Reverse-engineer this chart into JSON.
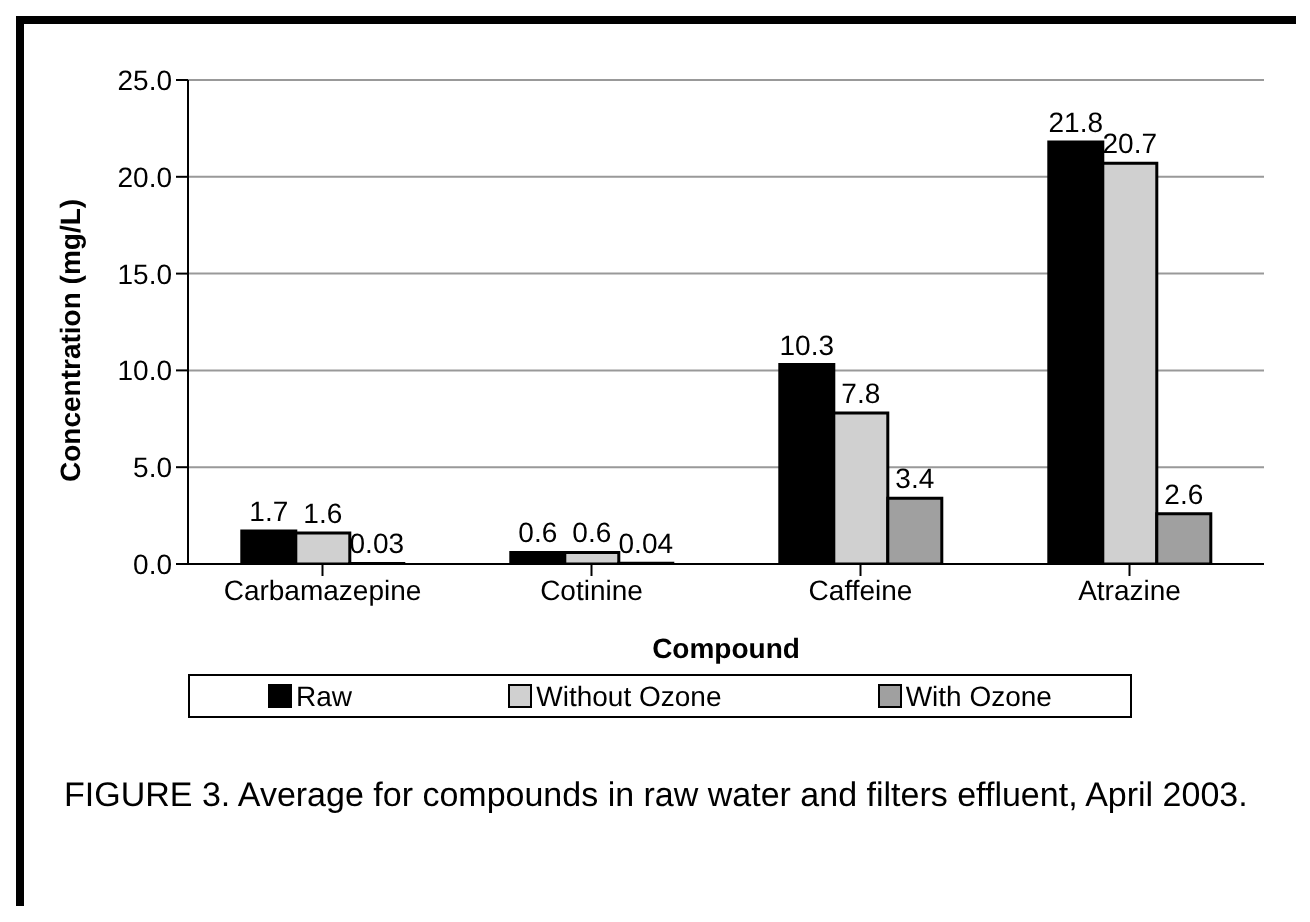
{
  "chart_data": {
    "type": "bar",
    "xlabel": "Compound",
    "ylabel": "Concentration (mg/L)",
    "categories": [
      "Carbamazepine",
      "Cotinine",
      "Caffeine",
      "Atrazine"
    ],
    "series": [
      {
        "name": "Raw",
        "color": "#000000",
        "values": [
          1.7,
          0.6,
          10.3,
          21.8
        ]
      },
      {
        "name": "Without Ozone",
        "color": "#d0d0d0",
        "values": [
          1.6,
          0.6,
          7.8,
          20.7
        ]
      },
      {
        "name": "With Ozone",
        "color": "#a0a0a0",
        "values": [
          0.03,
          0.04,
          3.4,
          2.6
        ]
      }
    ],
    "ylim": [
      0,
      25
    ],
    "yticks": [
      {
        "value": 0,
        "label": "0.0"
      },
      {
        "value": 5,
        "label": "5.0"
      },
      {
        "value": 10,
        "label": "10.0"
      },
      {
        "value": 15,
        "label": "15.0"
      },
      {
        "value": 20,
        "label": "20.0"
      },
      {
        "value": 25,
        "label": "25.0"
      }
    ],
    "grid": "y",
    "legend": "bottom",
    "data_labels": true,
    "annotations": [
      "FIGURE 3.   Average for compounds in raw water and filters effluent, April 2003."
    ]
  }
}
